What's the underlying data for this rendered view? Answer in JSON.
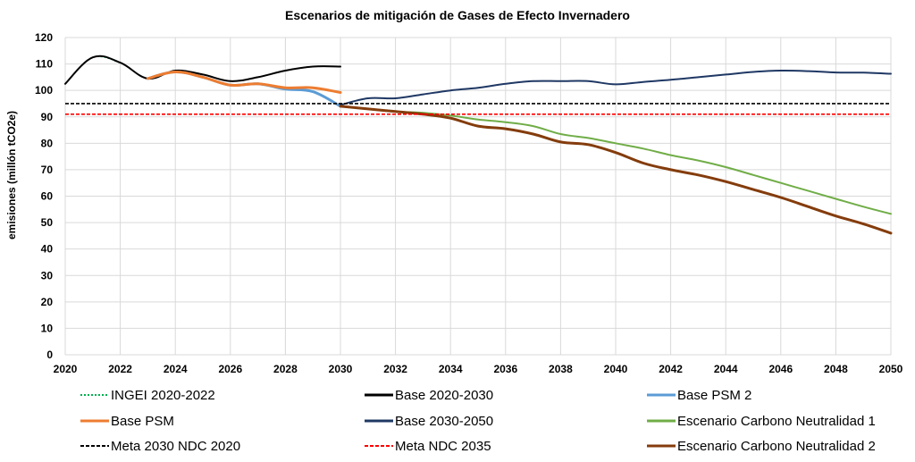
{
  "chart_data": {
    "type": "line",
    "title": "Escenarios de mitigación de Gases de Efecto Invernadero",
    "xlabel": "",
    "ylabel": "emisiones (millón tCO2e)",
    "xlim": [
      2020,
      2050
    ],
    "ylim": [
      0,
      120
    ],
    "x_ticks": [
      2020,
      2022,
      2024,
      2026,
      2028,
      2030,
      2032,
      2034,
      2036,
      2038,
      2040,
      2042,
      2044,
      2046,
      2048,
      2050
    ],
    "y_ticks": [
      0,
      10,
      20,
      30,
      40,
      50,
      60,
      70,
      80,
      90,
      100,
      110,
      120
    ],
    "grid": true,
    "legend_position": "bottom",
    "series": [
      {
        "name": "INGEI 2020-2022",
        "color": "#00b050",
        "dash": "dotted",
        "x": [
          2020,
          2021,
          2022
        ],
        "y": [
          102.5,
          112.5,
          110.5
        ]
      },
      {
        "name": "Base 2020-2030",
        "color": "#000000",
        "dash": "solid",
        "x": [
          2020,
          2021,
          2022,
          2023,
          2024,
          2025,
          2026,
          2027,
          2028,
          2029,
          2030
        ],
        "y": [
          102.5,
          112.5,
          110.5,
          104.5,
          107.5,
          106,
          103.5,
          105,
          107.5,
          109,
          109
        ]
      },
      {
        "name": "Base PSM 2",
        "color": "#5b9bd5",
        "dash": "solid",
        "x": [
          2023,
          2024,
          2025,
          2026,
          2027,
          2028,
          2029,
          2030
        ],
        "y": [
          104.5,
          107,
          105,
          102,
          102.5,
          100.5,
          99.5,
          94
        ]
      },
      {
        "name": "Base PSM",
        "color": "#ed7d31",
        "dash": "solid",
        "x": [
          2023,
          2024,
          2025,
          2026,
          2027,
          2028,
          2029,
          2030
        ],
        "y": [
          104.5,
          107,
          105,
          102,
          102.5,
          101,
          101,
          99.2
        ]
      },
      {
        "name": "Base 2030-2050",
        "color": "#1f3864",
        "dash": "solid",
        "x": [
          2030,
          2031,
          2032,
          2033,
          2034,
          2035,
          2036,
          2037,
          2038,
          2039,
          2040,
          2041,
          2042,
          2043,
          2044,
          2045,
          2046,
          2047,
          2048,
          2049,
          2050
        ],
        "y": [
          94.5,
          97,
          97,
          98.5,
          100,
          101,
          102.5,
          103.5,
          103.5,
          103.5,
          102.3,
          103.2,
          104,
          105,
          106,
          107,
          107.5,
          107.3,
          106.8,
          106.7,
          106.3
        ]
      },
      {
        "name": "Escenario Carbono Neutralidad 1",
        "color": "#70ad47",
        "dash": "solid",
        "x": [
          2030,
          2031,
          2032,
          2033,
          2034,
          2035,
          2036,
          2037,
          2038,
          2039,
          2040,
          2041,
          2042,
          2043,
          2044,
          2045,
          2046,
          2047,
          2048,
          2049,
          2050
        ],
        "y": [
          94,
          93,
          92,
          91.5,
          90.5,
          89,
          88,
          86.5,
          83.5,
          82,
          80,
          78,
          75.5,
          73.5,
          71,
          68,
          65,
          62,
          59,
          56,
          53.3
        ]
      },
      {
        "name": "Meta 2030 NDC 2020",
        "color": "#000000",
        "dash": "dashed",
        "x": [
          2020,
          2050
        ],
        "y": [
          95,
          95
        ]
      },
      {
        "name": "Meta NDC 2035",
        "color": "#ff0000",
        "dash": "dashed",
        "x": [
          2020,
          2050
        ],
        "y": [
          91,
          91
        ]
      },
      {
        "name": "Escenario Carbono Neutralidad 2",
        "color": "#843c0c",
        "dash": "solid",
        "x": [
          2030,
          2031,
          2032,
          2033,
          2034,
          2035,
          2036,
          2037,
          2038,
          2039,
          2040,
          2041,
          2042,
          2043,
          2044,
          2045,
          2046,
          2047,
          2048,
          2049,
          2050
        ],
        "y": [
          94,
          93,
          92,
          91,
          89.5,
          86.5,
          85.5,
          83.5,
          80.5,
          79.5,
          76.5,
          72.5,
          70,
          68,
          65.5,
          62.5,
          59.5,
          56,
          52.5,
          49.5,
          46
        ]
      }
    ],
    "legend_order": [
      [
        "INGEI 2020-2022",
        "Base 2020-2030",
        "Base PSM 2"
      ],
      [
        "Base PSM",
        "Base 2030-2050",
        "Escenario Carbono Neutralidad 1"
      ],
      [
        "Meta 2030 NDC 2020",
        "Meta NDC 2035",
        "Escenario Carbono Neutralidad 2"
      ]
    ]
  }
}
